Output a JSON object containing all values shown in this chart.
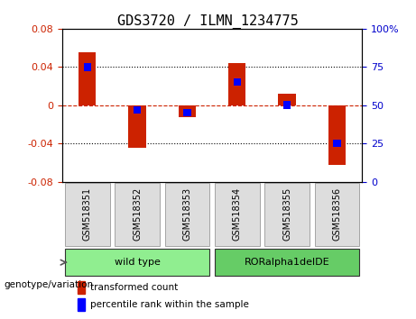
{
  "title": "GDS3720 / ILMN_1234775",
  "samples": [
    "GSM518351",
    "GSM518352",
    "GSM518353",
    "GSM518354",
    "GSM518355",
    "GSM518356"
  ],
  "red_values": [
    0.055,
    -0.045,
    -0.013,
    0.044,
    0.012,
    -0.063
  ],
  "blue_values_pct": [
    75,
    47,
    45,
    65,
    50,
    25
  ],
  "groups": [
    {
      "label": "wild type",
      "samples": [
        0,
        1,
        2
      ],
      "color": "#90EE90"
    },
    {
      "label": "RORalpha1delDE",
      "samples": [
        3,
        4,
        5
      ],
      "color": "#66CC66"
    }
  ],
  "ylim": [
    -0.08,
    0.08
  ],
  "yticks_left": [
    -0.08,
    -0.04,
    0,
    0.04,
    0.08
  ],
  "yticks_right": [
    0,
    25,
    50,
    75,
    100
  ],
  "left_color": "#CC2200",
  "right_color": "#0000CC",
  "zero_line_color": "#CC2200",
  "grid_color": "#000000",
  "bar_width": 0.35,
  "blue_bar_width": 0.15
}
